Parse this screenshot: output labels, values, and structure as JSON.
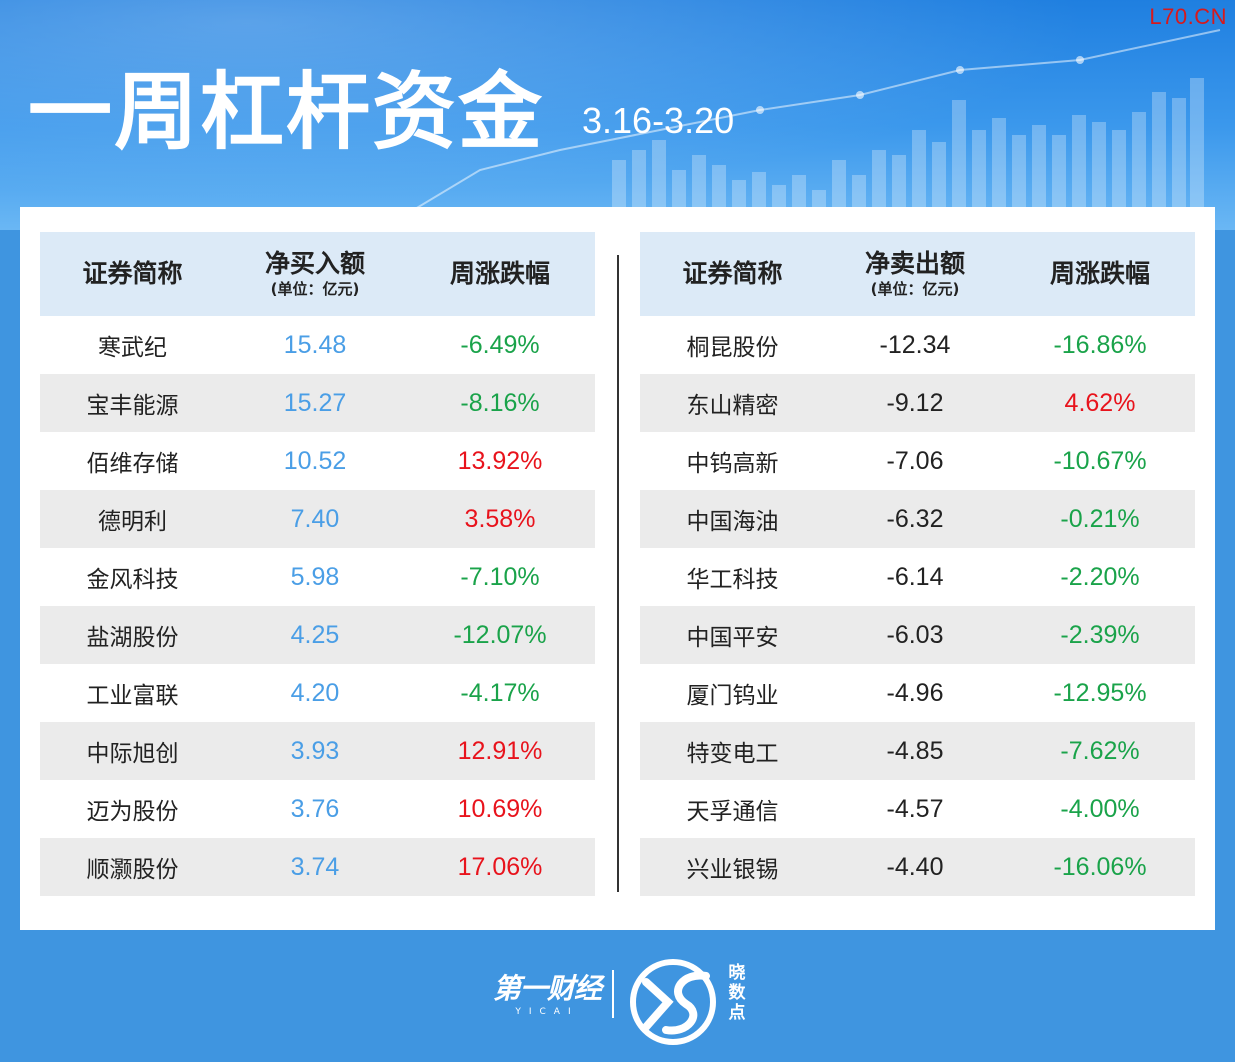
{
  "header": {
    "title": "一周杠杆资金",
    "date_range": "3.16-3.20",
    "watermark": "L70.CN"
  },
  "colors": {
    "up": "#e8131c",
    "down": "#1aa34a",
    "buy_value": "#4a9ee6",
    "header_bg": "#dceaf7",
    "page_bg": "#3f95e0"
  },
  "buy_table": {
    "col_name": "证券简称",
    "col_amount": "净买入额",
    "col_amount_unit": "(单位：亿元)",
    "col_change": "周涨跌幅",
    "rows": [
      {
        "name": "寒武纪",
        "amount": "15.48",
        "change": "-6.49%",
        "direction": "down"
      },
      {
        "name": "宝丰能源",
        "amount": "15.27",
        "change": "-8.16%",
        "direction": "down"
      },
      {
        "name": "佰维存储",
        "amount": "10.52",
        "change": "13.92%",
        "direction": "up"
      },
      {
        "name": "德明利",
        "amount": "7.40",
        "change": "3.58%",
        "direction": "up"
      },
      {
        "name": "金风科技",
        "amount": "5.98",
        "change": "-7.10%",
        "direction": "down"
      },
      {
        "name": "盐湖股份",
        "amount": "4.25",
        "change": "-12.07%",
        "direction": "down"
      },
      {
        "name": "工业富联",
        "amount": "4.20",
        "change": "-4.17%",
        "direction": "down"
      },
      {
        "name": "中际旭创",
        "amount": "3.93",
        "change": "12.91%",
        "direction": "up"
      },
      {
        "name": "迈为股份",
        "amount": "3.76",
        "change": "10.69%",
        "direction": "up"
      },
      {
        "name": "顺灏股份",
        "amount": "3.74",
        "change": "17.06%",
        "direction": "up"
      }
    ]
  },
  "sell_table": {
    "col_name": "证券简称",
    "col_amount": "净卖出额",
    "col_amount_unit": "(单位：亿元)",
    "col_change": "周涨跌幅",
    "rows": [
      {
        "name": "桐昆股份",
        "amount": "-12.34",
        "change": "-16.86%",
        "direction": "down"
      },
      {
        "name": "东山精密",
        "amount": "-9.12",
        "change": "4.62%",
        "direction": "up"
      },
      {
        "name": "中钨高新",
        "amount": "-7.06",
        "change": "-10.67%",
        "direction": "down"
      },
      {
        "name": "中国海油",
        "amount": "-6.32",
        "change": "-0.21%",
        "direction": "down"
      },
      {
        "name": "华工科技",
        "amount": "-6.14",
        "change": "-2.20%",
        "direction": "down"
      },
      {
        "name": "中国平安",
        "amount": "-6.03",
        "change": "-2.39%",
        "direction": "down"
      },
      {
        "name": "厦门钨业",
        "amount": "-4.96",
        "change": "-12.95%",
        "direction": "down"
      },
      {
        "name": "特变电工",
        "amount": "-4.85",
        "change": "-7.62%",
        "direction": "down"
      },
      {
        "name": "天孚通信",
        "amount": "-4.57",
        "change": "-4.00%",
        "direction": "down"
      },
      {
        "name": "兴业银锡",
        "amount": "-4.40",
        "change": "-16.06%",
        "direction": "down"
      }
    ]
  },
  "footer": {
    "brand1": "第一财经",
    "brand1_sub": "YICAI",
    "brand2": "晓数点"
  }
}
